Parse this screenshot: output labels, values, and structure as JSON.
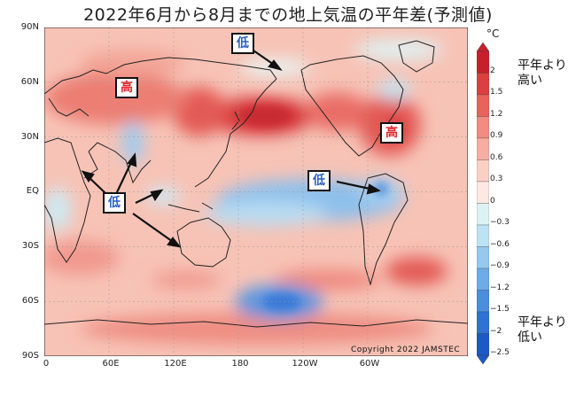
{
  "title": "2022年6月から8月までの地上気温の平年差(予測値)",
  "lat_labels": [
    "90N",
    "60N",
    "30N",
    "EQ",
    "30S",
    "60S",
    "90S"
  ],
  "lon_labels": [
    "0",
    "60E",
    "120E",
    "180",
    "120W",
    "60W"
  ],
  "colorbar": {
    "unit": "°C",
    "ticks": [
      "2",
      "1.5",
      "1.2",
      "0.9",
      "0.6",
      "0.3",
      "0",
      "−0.3",
      "−0.6",
      "−0.9",
      "−1.2",
      "−1.5",
      "−2",
      "−2.5"
    ],
    "colors": [
      "#c8202b",
      "#dc3f41",
      "#e9625c",
      "#f08b80",
      "#f6aea2",
      "#fad0c5",
      "#fde9e2",
      "#dcf3f3",
      "#bde2f3",
      "#97c9ee",
      "#6fabe6",
      "#4b8edc",
      "#2f72d4",
      "#1c58c6"
    ],
    "note_high": [
      "平年より",
      "高い"
    ],
    "note_low": [
      "平年より",
      "低い"
    ]
  },
  "copyright": "Copyright 2022 JAMSTEC",
  "annotations": {
    "high_label": "高",
    "low_label": "低"
  }
}
